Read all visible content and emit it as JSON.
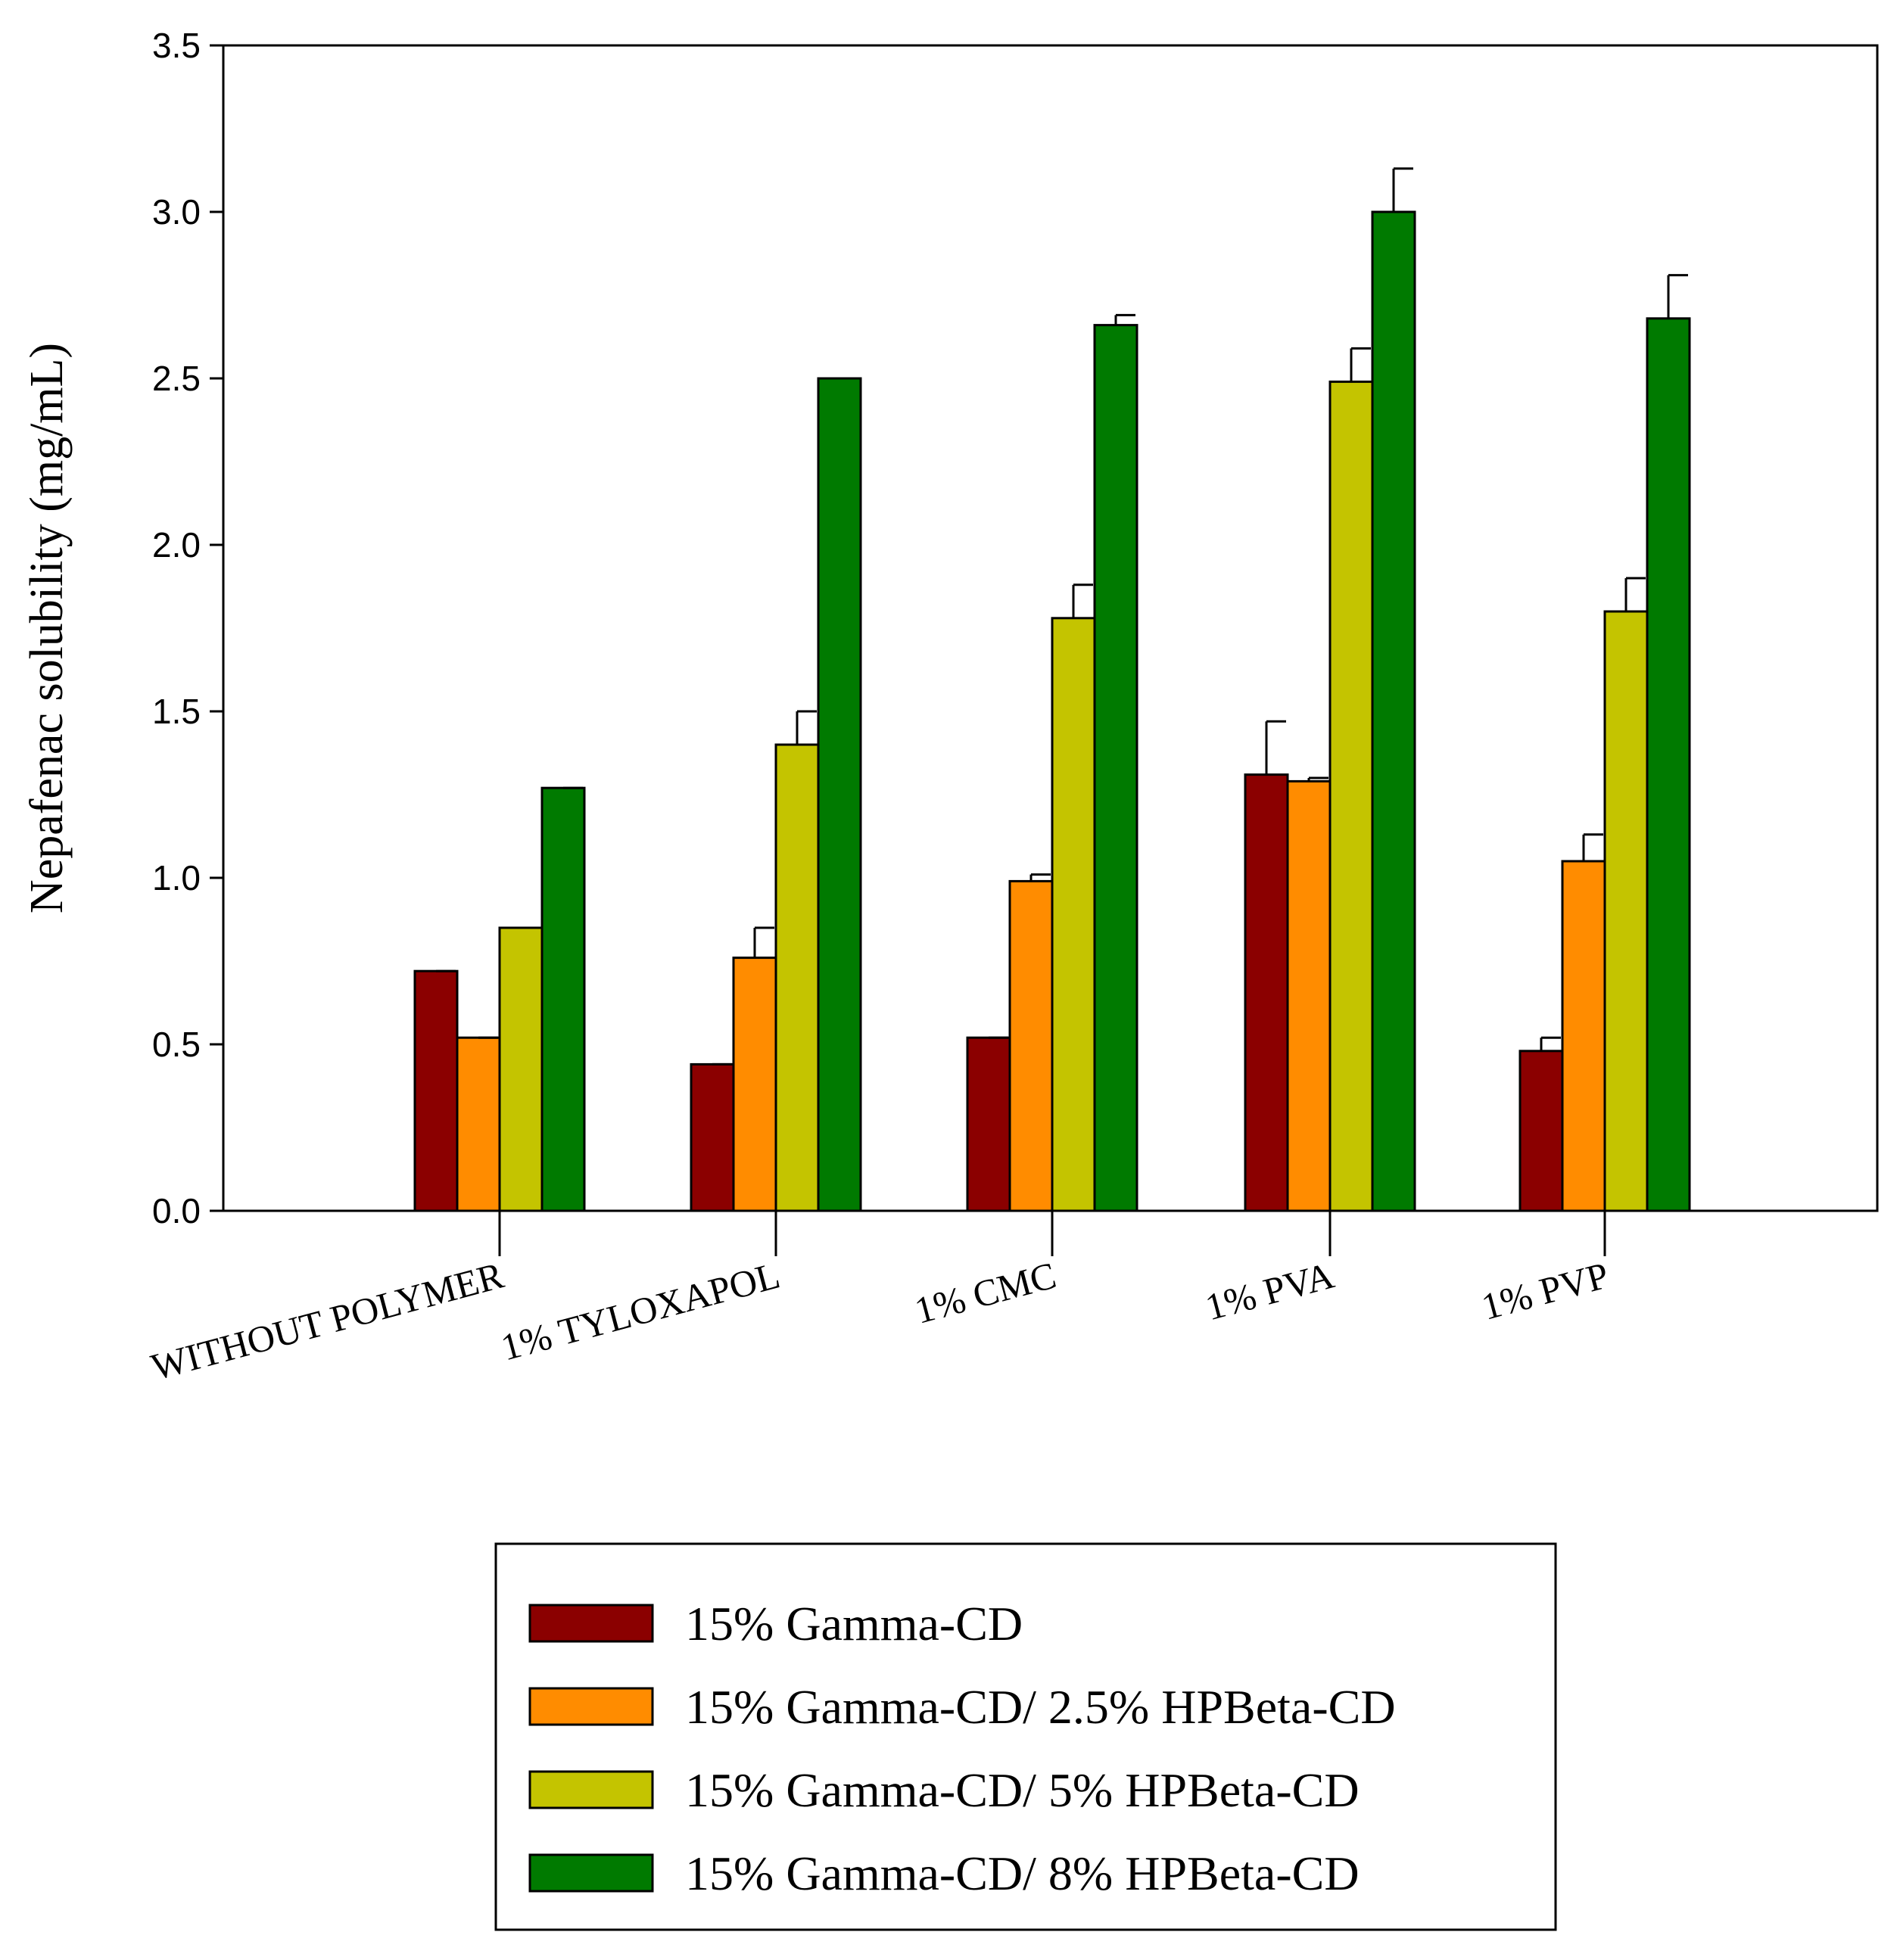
{
  "chart_data": {
    "type": "bar",
    "title": "",
    "xlabel": "",
    "ylabel": "Nepafenac solubility (mg/mL)",
    "ylim": [
      0,
      3.5
    ],
    "yticks": [
      "0.0",
      "0.5",
      "1.0",
      "1.5",
      "2.0",
      "2.5",
      "3.0",
      "3.5"
    ],
    "grid": false,
    "legend_position": "bottom",
    "categories": [
      "WITHOUT POLYMER",
      "1% TYLOXAPOL",
      "1%  CMC",
      "1% PVA",
      "1% PVP"
    ],
    "series": [
      {
        "name": "15% Gamma-CD",
        "color": "#8B0000",
        "values": [
          0.72,
          0.44,
          0.52,
          1.31,
          0.48
        ],
        "errors": [
          0.0,
          0.0,
          0.0,
          0.16,
          0.04
        ]
      },
      {
        "name": "15% Gamma-CD/ 2.5% HPBeta-CD",
        "color": "#FF8C00",
        "values": [
          0.52,
          0.76,
          0.99,
          1.29,
          1.05
        ],
        "errors": [
          0.0,
          0.09,
          0.02,
          0.01,
          0.08
        ]
      },
      {
        "name": "15% Gamma-CD/ 5% HPBeta-CD",
        "color": "#C4C400",
        "values": [
          0.85,
          1.4,
          1.78,
          2.49,
          1.8
        ],
        "errors": [
          0.0,
          0.1,
          0.1,
          0.1,
          0.1
        ]
      },
      {
        "name": "15% Gamma-CD/ 8% HPBeta-CD",
        "color": "#007A00",
        "values": [
          1.27,
          2.5,
          2.66,
          3.0,
          2.68
        ],
        "errors": [
          0.0,
          0.0,
          0.03,
          0.13,
          0.13
        ]
      }
    ]
  }
}
